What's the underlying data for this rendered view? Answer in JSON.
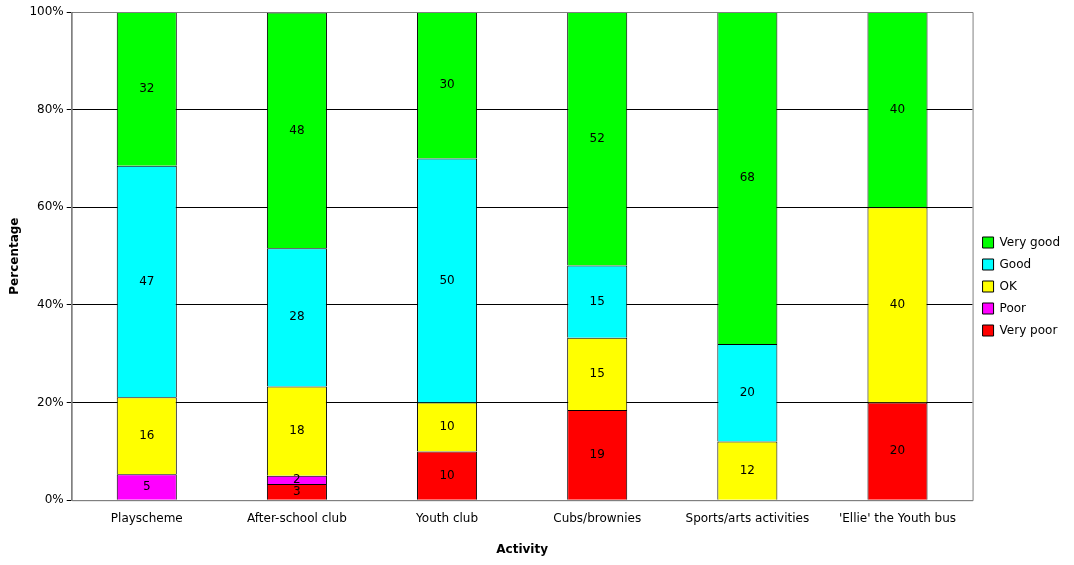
{
  "chart_data": {
    "type": "bar",
    "stacked": true,
    "xlabel": "Activity",
    "ylabel": "Percentage",
    "categories": [
      "Playscheme",
      "After-school club",
      "Youth club",
      "Cubs/brownies",
      "Sports/arts activities",
      "'Ellie' the Youth bus"
    ],
    "series": [
      {
        "name": "Very poor",
        "color": "#ff0000",
        "values": [
          null,
          3.3,
          10,
          18.5,
          null,
          20
        ],
        "value_labels": [
          null,
          "3",
          "10",
          "19",
          null,
          "20"
        ]
      },
      {
        "name": "Poor",
        "color": "#ff00ff",
        "values": [
          5.3,
          1.7,
          null,
          null,
          null,
          null
        ],
        "value_labels": [
          "5",
          "2",
          null,
          null,
          null,
          null
        ]
      },
      {
        "name": "OK",
        "color": "#ffff00",
        "values": [
          15.8,
          18.3,
          10,
          14.8,
          12,
          40
        ],
        "value_labels": [
          "16",
          "18",
          "10",
          "15",
          "12",
          "40"
        ]
      },
      {
        "name": "Good",
        "color": "#00ffff",
        "values": [
          47.4,
          28.3,
          50,
          14.8,
          20,
          null
        ],
        "value_labels": [
          "47",
          "28",
          "50",
          "15",
          "20",
          null
        ]
      },
      {
        "name": "Very good",
        "color": "#00ff00",
        "values": [
          31.5,
          48.3,
          30,
          51.9,
          68,
          40
        ],
        "value_labels": [
          "32",
          "48",
          "30",
          "52",
          "68",
          "40"
        ]
      }
    ],
    "ylim": [
      0,
      100
    ],
    "yticks": [
      {
        "value": 0,
        "label": "0%"
      },
      {
        "value": 20,
        "label": "20%"
      },
      {
        "value": 40,
        "label": "40%"
      },
      {
        "value": 60,
        "label": "60%"
      },
      {
        "value": 80,
        "label": "80%"
      },
      {
        "value": 100,
        "label": "100%"
      }
    ],
    "grid": "y",
    "legend": "right"
  }
}
